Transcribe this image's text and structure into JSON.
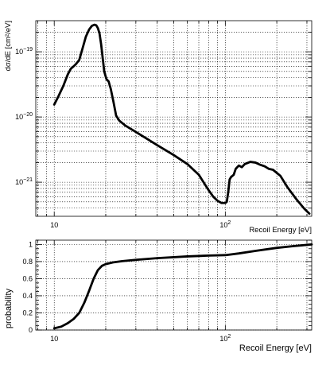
{
  "chart_data": [
    {
      "type": "line",
      "xlabel": "Recoil Energy [eV]",
      "ylabel": "dσ/dE [cm²/eV]",
      "xscale": "log",
      "yscale": "log",
      "xlim": [
        7.8,
        320
      ],
      "ylim": [
        3e-22,
        3e-19
      ],
      "grid": true,
      "x_ticks": [
        {
          "value": 10,
          "label": "10"
        },
        {
          "value": 100,
          "label": "10",
          "exp": "2"
        }
      ],
      "y_ticks": [
        {
          "value": 1e-21,
          "label": "10",
          "exp": "−21"
        },
        {
          "value": 1e-20,
          "label": "10",
          "exp": "−20"
        },
        {
          "value": 1e-19,
          "label": "10",
          "exp": "−19"
        }
      ],
      "series": [
        {
          "x": [
            10,
            10.6,
            11.3,
            12,
            12.5,
            13,
            13.4,
            14,
            14.6,
            15.3,
            16,
            16.6,
            17.2,
            17.6,
            18,
            18.4,
            18.8,
            19.2,
            19.6,
            20.2,
            20.8,
            21.4,
            22.2,
            23,
            24,
            26,
            30,
            35,
            40,
            50,
            60,
            70,
            80,
            85,
            90,
            95,
            100,
            102,
            104,
            106,
            108,
            110,
            112,
            115,
            120,
            125,
            130,
            140,
            150,
            160,
            170,
            180,
            190,
            210,
            230,
            260,
            290,
            310
          ],
          "y": [
            1.55e-20,
            2.1e-20,
            3e-20,
            4.5e-20,
            5.5e-20,
            6e-20,
            6.5e-20,
            7.5e-20,
            1.1e-19,
            1.7e-19,
            2.2e-19,
            2.5e-19,
            2.6e-19,
            2.55e-19,
            2.3e-19,
            1.9e-19,
            1.3e-19,
            8e-20,
            5e-20,
            3.8e-20,
            3.5e-20,
            2.7e-20,
            1.7e-20,
            1.05e-20,
            8.8e-21,
            7.4e-21,
            5.9e-21,
            4.6e-21,
            3.7e-21,
            2.6e-21,
            1.9e-21,
            1.3e-21,
            7.5e-22,
            6e-22,
            5.2e-22,
            4.8e-22,
            4.8e-22,
            5e-22,
            7e-22,
            1.1e-21,
            1.2e-21,
            1.25e-21,
            1.3e-21,
            1.6e-21,
            1.8e-21,
            1.7e-21,
            1.9e-21,
            2.05e-21,
            2e-21,
            1.85e-21,
            1.75e-21,
            1.6e-21,
            1.55e-21,
            1.25e-21,
            8.5e-22,
            5.5e-22,
            3.9e-22,
            3.3e-22
          ]
        }
      ]
    },
    {
      "type": "line",
      "xlabel": "Recoil Energy [eV]",
      "ylabel": "probability",
      "xscale": "log",
      "yscale": "linear",
      "xlim": [
        7.8,
        320
      ],
      "ylim": [
        0,
        1.05
      ],
      "grid": true,
      "x_ticks": [
        {
          "value": 10,
          "label": "10"
        },
        {
          "value": 100,
          "label": "10",
          "exp": "2"
        }
      ],
      "y_ticks": [
        {
          "value": 0,
          "label": "0"
        },
        {
          "value": 0.2,
          "label": "0.2"
        },
        {
          "value": 0.4,
          "label": "0.4"
        },
        {
          "value": 0.6,
          "label": "0.6"
        },
        {
          "value": 0.8,
          "label": "0.8"
        },
        {
          "value": 1,
          "label": "1"
        }
      ],
      "series": [
        {
          "x": [
            10,
            11,
            12,
            13,
            14,
            15,
            16,
            17,
            18,
            19,
            20,
            22,
            25,
            30,
            40,
            60,
            80,
            100,
            120,
            150,
            200,
            250,
            300,
            320
          ],
          "y": [
            0.02,
            0.04,
            0.08,
            0.13,
            0.2,
            0.32,
            0.46,
            0.6,
            0.7,
            0.75,
            0.77,
            0.79,
            0.805,
            0.82,
            0.84,
            0.86,
            0.87,
            0.875,
            0.895,
            0.925,
            0.96,
            0.98,
            0.995,
            1.0
          ]
        }
      ]
    }
  ]
}
